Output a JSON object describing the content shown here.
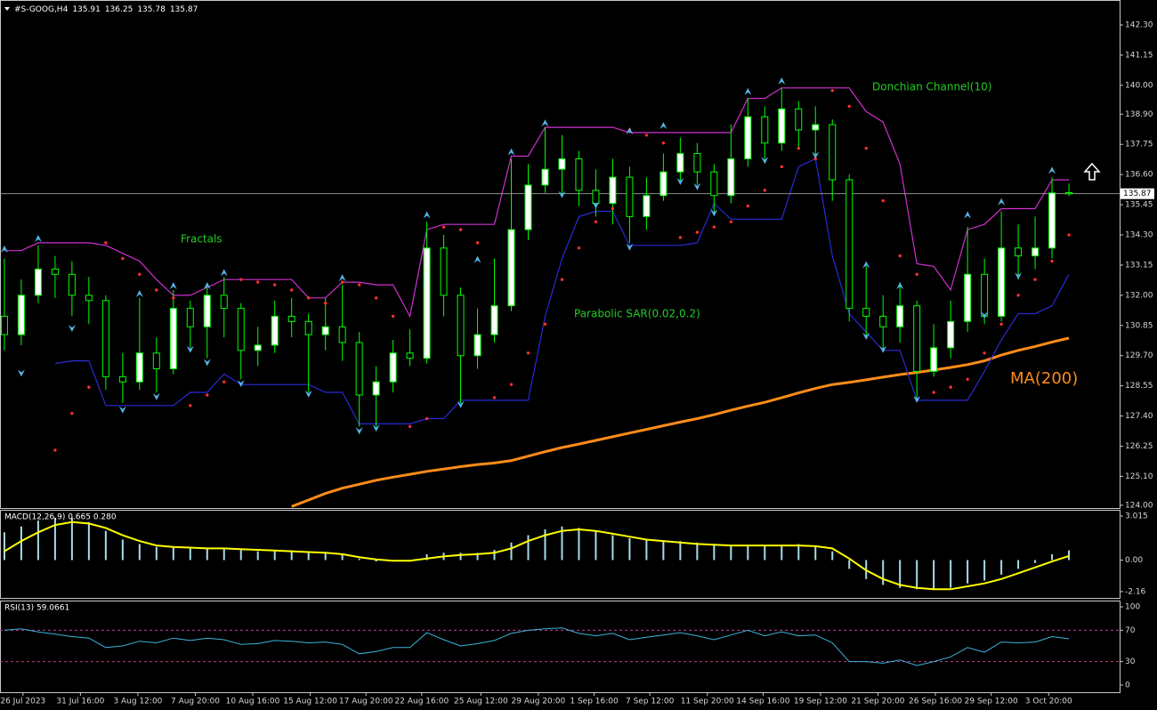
{
  "chart_data": [
    {
      "type": "candlestick",
      "title": "#S-GOOG,H4",
      "xlim": [
        -0.26,
        66
      ],
      "xticks": [
        {
          "value": 1.1,
          "label": "26 Jul 2023"
        },
        {
          "value": 4.5,
          "label": "31 Jul 16:00"
        },
        {
          "value": 7.9,
          "label": "3 Aug 12:00"
        },
        {
          "value": 11.3,
          "label": "7 Aug 20:00"
        },
        {
          "value": 14.7,
          "label": "10 Aug 16:00"
        },
        {
          "value": 18.1,
          "label": "15 Aug 12:00"
        },
        {
          "value": 21.4,
          "label": "17 Aug 20:00"
        },
        {
          "value": 24.7,
          "label": "22 Aug 16:00"
        },
        {
          "value": 28.2,
          "label": "25 Aug 12:00"
        },
        {
          "value": 31.6,
          "label": "29 Aug 20:00"
        },
        {
          "value": 34.9,
          "label": "1 Sep 16:00"
        },
        {
          "value": 38.2,
          "label": "7 Sep 12:00"
        },
        {
          "value": 41.6,
          "label": "11 Sep 20:00"
        },
        {
          "value": 44.9,
          "label": "14 Sep 16:00"
        },
        {
          "value": 48.3,
          "label": "19 Sep 12:00"
        },
        {
          "value": 51.7,
          "label": "21 Sep 20:00"
        },
        {
          "value": 55.1,
          "label": "26 Sep 16:00"
        },
        {
          "value": 58.4,
          "label": "29 Sep 12:00"
        },
        {
          "value": 61.8,
          "label": "3 Oct 20:00"
        }
      ],
      "ylim": [
        123.86,
        143.25
      ],
      "yticks": [
        {
          "value": 142.3,
          "label": "142.30"
        },
        141.15,
        {
          "value": 140,
          "label": "140.00"
        },
        {
          "value": 138.9,
          "label": "138.90"
        },
        137.75,
        {
          "value": 136.6,
          "label": "136.60"
        },
        135.45,
        {
          "value": 134.3,
          "label": "134.30"
        },
        133.15,
        {
          "value": 132,
          "label": "132.00"
        },
        130.85,
        {
          "value": 129.7,
          "label": "129.70"
        },
        128.55,
        {
          "value": 127.4,
          "label": "127.40"
        },
        126.25,
        {
          "value": 125.1,
          "label": "125.10"
        },
        {
          "value": 124,
          "label": "124.00"
        }
      ],
      "open": [
        131.2,
        130.5,
        132.0,
        133.0,
        132.8,
        132.0,
        131.8,
        128.9,
        128.7,
        129.8,
        129.2,
        131.5,
        130.8,
        132.0,
        131.5,
        129.9,
        130.1,
        131.2,
        131.0,
        130.5,
        130.8,
        130.2,
        128.2,
        128.7,
        129.8,
        129.6,
        133.8,
        132.0,
        129.7,
        130.5,
        131.6,
        134.5,
        136.2,
        136.8,
        137.2,
        136.0,
        135.5,
        136.5,
        135.0,
        135.8,
        136.7,
        137.4,
        136.7,
        135.8,
        137.2,
        138.8,
        137.8,
        139.1,
        138.3,
        138.5,
        136.4,
        131.5,
        131.2,
        130.8,
        131.6,
        129.1,
        130.0,
        131.0,
        132.8,
        131.2,
        133.8,
        133.5,
        133.8,
        135.91
      ],
      "high": [
        133.4,
        132.6,
        133.9,
        133.5,
        133.3,
        132.7,
        132.0,
        129.8,
        131.9,
        130.4,
        132.2,
        131.8,
        132.3,
        132.7,
        131.7,
        130.8,
        131.8,
        131.9,
        131.3,
        131.9,
        132.4,
        130.6,
        129.3,
        130.3,
        130.7,
        134.8,
        134.3,
        132.3,
        131.5,
        133.4,
        137.2,
        137.0,
        138.4,
        138.1,
        137.5,
        136.8,
        137.2,
        136.9,
        136.5,
        137.4,
        138.0,
        137.8,
        137.0,
        138.5,
        139.5,
        139.2,
        139.9,
        139.4,
        139.2,
        138.7,
        136.6,
        133.1,
        132.0,
        132.5,
        131.8,
        130.9,
        131.8,
        134.6,
        133.4,
        135.2,
        134.7,
        135.0,
        136.5,
        136.25
      ],
      "low": [
        129.9,
        130.1,
        131.7,
        131.9,
        131.2,
        130.9,
        128.4,
        127.9,
        128.4,
        128.3,
        129.0,
        130.0,
        129.6,
        130.4,
        128.8,
        129.3,
        129.8,
        130.4,
        128.3,
        129.9,
        129.5,
        127.0,
        127.0,
        128.3,
        129.3,
        129.4,
        131.2,
        127.9,
        129.2,
        130.2,
        131.4,
        134.1,
        135.9,
        135.8,
        135.4,
        135.0,
        134.7,
        134.0,
        134.5,
        135.6,
        136.3,
        136.2,
        135.1,
        135.5,
        136.9,
        137.2,
        137.5,
        137.6,
        137.3,
        135.6,
        131.0,
        130.4,
        129.9,
        130.2,
        128.0,
        128.9,
        129.6,
        130.6,
        130.9,
        131.0,
        132.6,
        133.0,
        133.4,
        135.78
      ],
      "close": [
        130.5,
        132.0,
        133.0,
        132.8,
        132.0,
        131.8,
        128.9,
        128.7,
        129.8,
        129.2,
        131.5,
        130.8,
        132.0,
        131.5,
        129.9,
        130.1,
        131.2,
        131.0,
        130.5,
        130.8,
        130.2,
        128.2,
        128.7,
        129.8,
        129.6,
        133.8,
        132.0,
        129.7,
        130.5,
        131.6,
        134.5,
        136.2,
        136.8,
        137.2,
        136.0,
        135.5,
        136.5,
        135.0,
        135.8,
        136.7,
        137.4,
        136.7,
        135.8,
        137.2,
        138.8,
        137.8,
        139.1,
        138.3,
        138.5,
        136.4,
        131.5,
        131.2,
        130.8,
        131.6,
        129.1,
        130.0,
        131.0,
        132.8,
        131.2,
        133.8,
        133.5,
        133.8,
        135.9,
        135.87
      ],
      "up_color": "#ffffff",
      "down_color": "#000000",
      "wick_color": "#00ff00",
      "last_price_line": true,
      "donchian": {
        "upper": [
          133.7,
          133.7,
          134.0,
          134.0,
          134.0,
          134.0,
          133.9,
          133.6,
          133.3,
          132.6,
          132.0,
          132.0,
          132.3,
          132.6,
          132.6,
          132.6,
          132.6,
          132.6,
          131.9,
          131.9,
          132.5,
          132.5,
          132.4,
          132.4,
          131.2,
          134.5,
          134.7,
          134.7,
          134.7,
          134.7,
          137.3,
          137.3,
          138.4,
          138.4,
          138.4,
          138.4,
          138.4,
          138.2,
          138.2,
          138.2,
          138.2,
          138.2,
          138.2,
          138.2,
          139.5,
          139.5,
          139.9,
          139.9,
          139.9,
          139.9,
          139.9,
          139.0,
          138.6,
          137.0,
          133.2,
          133.1,
          132.2,
          134.5,
          134.7,
          135.3,
          135.3,
          135.3,
          136.4,
          136.4
        ],
        "lower": [
          null,
          null,
          null,
          129.4,
          129.5,
          129.5,
          127.8,
          127.8,
          127.8,
          127.8,
          127.8,
          128.3,
          128.3,
          129.0,
          128.6,
          128.6,
          128.6,
          128.6,
          128.6,
          128.3,
          128.3,
          127.1,
          127.1,
          127.1,
          127.1,
          127.3,
          127.3,
          128.0,
          128.0,
          128.0,
          128.0,
          128.0,
          131.2,
          133.4,
          135.0,
          135.2,
          135.2,
          133.9,
          133.9,
          133.9,
          133.9,
          134.0,
          135.5,
          134.9,
          134.9,
          134.9,
          134.9,
          136.9,
          137.2,
          133.5,
          131.3,
          130.6,
          129.9,
          129.9,
          128.0,
          128.0,
          128.0,
          128.0,
          129.1,
          130.3,
          131.3,
          131.3,
          131.6,
          132.8
        ],
        "upper_color": "#d030d0",
        "lower_color": "#2a2ad8"
      },
      "sar": {
        "values": [
          null,
          null,
          null,
          126.1,
          127.5,
          128.5,
          134.0,
          133.4,
          132.8,
          132.2,
          131.9,
          127.8,
          128.2,
          128.7,
          132.6,
          132.5,
          132.4,
          132.2,
          131.9,
          131.7,
          132.5,
          132.4,
          131.9,
          131.2,
          127.0,
          127.3,
          134.6,
          134.5,
          134.0,
          128.1,
          128.6,
          129.8,
          130.9,
          132.6,
          133.8,
          134.8,
          135.3,
          138.3,
          138.1,
          137.8,
          134.2,
          134.4,
          134.6,
          134.8,
          135.4,
          136.0,
          136.9,
          137.6,
          137.2,
          139.8,
          139.2,
          137.6,
          135.6,
          133.5,
          132.8,
          128.3,
          128.5,
          128.8,
          129.8,
          130.9,
          132.0,
          132.6,
          133.3,
          134.3
        ],
        "color": "#ff3030"
      },
      "ma": {
        "values": [
          null,
          null,
          null,
          null,
          null,
          null,
          null,
          null,
          null,
          null,
          null,
          null,
          null,
          null,
          null,
          null,
          null,
          123.95,
          124.2,
          124.45,
          124.65,
          124.8,
          124.95,
          125.07,
          125.18,
          125.29,
          125.38,
          125.47,
          125.55,
          125.61,
          125.7,
          125.87,
          126.04,
          126.2,
          126.33,
          126.47,
          126.61,
          126.75,
          126.89,
          127.03,
          127.17,
          127.3,
          127.45,
          127.62,
          127.78,
          127.92,
          128.1,
          128.28,
          128.45,
          128.6,
          128.68,
          128.78,
          128.88,
          128.98,
          129.06,
          129.15,
          129.25,
          129.36,
          129.5,
          129.72,
          129.9,
          130.05,
          130.22,
          130.37
        ],
        "color": "#ff8c1a"
      },
      "fractals": {
        "color": "#55b4e6",
        "up": {
          "x": [
            0,
            2,
            8,
            10,
            12,
            13,
            20,
            25,
            28,
            30,
            32,
            37,
            39,
            44,
            46,
            51,
            53,
            57,
            59,
            62
          ],
          "values": [
            133.9,
            134.3,
            132.2,
            132.5,
            132.5,
            133.0,
            132.8,
            135.2,
            133.5,
            137.6,
            138.7,
            138.4,
            138.6,
            139.9,
            140.3,
            133.3,
            132.5,
            135.2,
            135.7,
            136.9
          ]
        },
        "down": {
          "x": [
            1,
            4,
            7,
            9,
            11,
            12,
            14,
            18,
            21,
            22,
            27,
            33,
            35,
            37,
            40,
            41,
            42,
            45,
            48,
            51,
            52,
            54,
            58,
            60
          ],
          "values": [
            128.9,
            130.6,
            127.5,
            128.0,
            129.8,
            129.3,
            128.5,
            128.1,
            126.7,
            126.8,
            127.7,
            135.7,
            135.3,
            133.7,
            136.2,
            136.0,
            135.0,
            137.0,
            137.2,
            130.3,
            129.8,
            127.9,
            131.1,
            132.6
          ]
        }
      },
      "annotations": [
        {
          "text": "Fractals",
          "color": "#22cc22"
        },
        {
          "text": "Parabolic SAR(0.02,0.2)",
          "color": "#22cc22"
        },
        {
          "text": "Donchian Channel(10)",
          "color": "#22cc22"
        },
        {
          "text": "MA(200)",
          "color": "#ff8c1a"
        }
      ]
    },
    {
      "type": "macd",
      "title": "MACD(12,26,9) 0.665 0.280",
      "ylim": [
        -2.59,
        3.38
      ],
      "yticks": [
        3.015,
        {
          "value": 0,
          "label": "0.00"
        },
        -2.16
      ],
      "histogram": {
        "values": [
          1.9,
          2.3,
          2.7,
          2.9,
          2.9,
          2.6,
          2.0,
          1.4,
          1.1,
          0.9,
          0.9,
          0.8,
          0.8,
          0.8,
          0.7,
          0.6,
          0.6,
          0.6,
          0.5,
          0.5,
          0.4,
          0.1,
          -0.1,
          -0.1,
          -0.1,
          0.4,
          0.5,
          0.5,
          0.5,
          0.7,
          1.2,
          1.7,
          2.1,
          2.3,
          2.2,
          2.0,
          1.7,
          1.5,
          1.4,
          1.3,
          1.3,
          1.2,
          1.1,
          1.0,
          1.0,
          1.0,
          1.0,
          1.1,
          1.0,
          0.6,
          -0.6,
          -1.3,
          -1.7,
          -1.9,
          -2.0,
          -2.0,
          -1.9,
          -1.6,
          -1.4,
          -1.0,
          -0.6,
          -0.2,
          0.4,
          0.665
        ],
        "color": "#a8dce6"
      },
      "signal": {
        "values": [
          0.6,
          1.3,
          1.9,
          2.4,
          2.6,
          2.5,
          2.2,
          1.7,
          1.3,
          1.0,
          0.9,
          0.85,
          0.8,
          0.8,
          0.75,
          0.7,
          0.65,
          0.6,
          0.55,
          0.5,
          0.4,
          0.2,
          0.05,
          -0.05,
          -0.05,
          0.1,
          0.25,
          0.35,
          0.4,
          0.5,
          0.8,
          1.3,
          1.7,
          2.0,
          2.1,
          2.0,
          1.8,
          1.6,
          1.4,
          1.3,
          1.2,
          1.1,
          1.05,
          1.0,
          1.0,
          1.0,
          1.0,
          1.0,
          0.95,
          0.8,
          0.1,
          -0.7,
          -1.3,
          -1.7,
          -1.9,
          -2.0,
          -2.0,
          -1.8,
          -1.6,
          -1.3,
          -0.9,
          -0.5,
          -0.1,
          0.28
        ],
        "color": "#ffff00"
      }
    },
    {
      "type": "line",
      "title": "RSI(13) 59.0661",
      "ylim": [
        -9.1,
        108
      ],
      "yticks": [
        100,
        70,
        30,
        0
      ],
      "values": [
        70,
        72,
        68,
        65,
        62,
        60,
        48,
        50,
        56,
        54,
        60,
        57,
        60,
        58,
        52,
        53,
        57,
        56,
        54,
        55,
        52,
        40,
        43,
        48,
        48,
        67,
        58,
        50,
        53,
        57,
        66,
        70,
        72,
        73,
        66,
        63,
        66,
        58,
        61,
        64,
        67,
        63,
        58,
        64,
        70,
        63,
        68,
        63,
        64,
        54,
        30,
        30,
        28,
        32,
        25,
        30,
        36,
        48,
        42,
        55,
        54,
        55,
        62,
        59.0661
      ],
      "color": "#3cb4dc",
      "levels": [
        70,
        30
      ],
      "level_color": "#c03c8c"
    }
  ]
}
